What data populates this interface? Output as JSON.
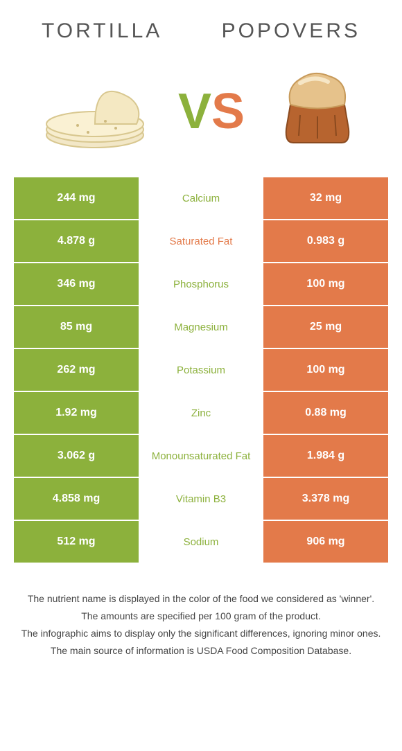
{
  "colors": {
    "left": "#8cb13c",
    "right": "#e37a4a",
    "title": "#555555",
    "footer": "#444444"
  },
  "titles": {
    "left": "Tortilla",
    "right": "Popovers"
  },
  "vs": {
    "v": "V",
    "s": "S"
  },
  "rows": [
    {
      "left": "244 mg",
      "label": "Calcium",
      "right": "32 mg",
      "winner": "left"
    },
    {
      "left": "4.878 g",
      "label": "Saturated Fat",
      "right": "0.983 g",
      "winner": "right"
    },
    {
      "left": "346 mg",
      "label": "Phosphorus",
      "right": "100 mg",
      "winner": "left"
    },
    {
      "left": "85 mg",
      "label": "Magnesium",
      "right": "25 mg",
      "winner": "left"
    },
    {
      "left": "262 mg",
      "label": "Potassium",
      "right": "100 mg",
      "winner": "left"
    },
    {
      "left": "1.92 mg",
      "label": "Zinc",
      "right": "0.88 mg",
      "winner": "left"
    },
    {
      "left": "3.062 g",
      "label": "Monounsaturated Fat",
      "right": "1.984 g",
      "winner": "left"
    },
    {
      "left": "4.858 mg",
      "label": "Vitamin B3",
      "right": "3.378 mg",
      "winner": "left"
    },
    {
      "left": "512 mg",
      "label": "Sodium",
      "right": "906 mg",
      "winner": "left"
    }
  ],
  "footer": [
    "The nutrient name is displayed in the color of the food we considered as 'winner'.",
    "The amounts are specified per 100 gram of the product.",
    "The infographic aims to display only the significant differences, ignoring minor ones.",
    "The main source of information is USDA Food Composition Database."
  ]
}
